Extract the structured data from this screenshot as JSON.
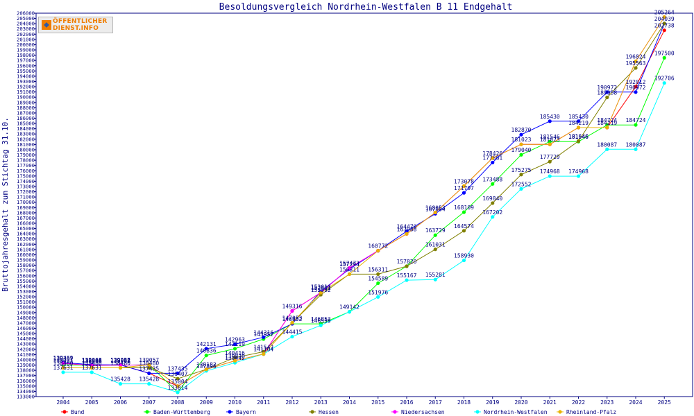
{
  "logo": {
    "line1": "ÖFFENTLICHER",
    "line2": "DIENST.INFO"
  },
  "chart_data": {
    "type": "line",
    "title": "Besoldungsvergleich Nordrhein-Westfalen B 11 Endgehalt",
    "xlabel": "",
    "ylabel": "Bruttojahresgehalt zum Stichtag 31.10.",
    "ylim": [
      133000,
      206000
    ],
    "ytick_step": 1000,
    "grid": false,
    "legend_position": "bottom",
    "categories": [
      "2004",
      "2005",
      "2006",
      "2007",
      "2008",
      "2009",
      "2010",
      "2011",
      "2012",
      "2013",
      "2014",
      "2015",
      "2016",
      "2017",
      "2018",
      "2019",
      "2020",
      "2021",
      "2022",
      "2023",
      "2024",
      "2025"
    ],
    "series": [
      {
        "name": "Bund",
        "color": "#ff0000",
        "values": [
          139331,
          138888,
          139057,
          137435,
          135004,
          138182,
          139830,
          141104,
          149316,
          152801,
          157473,
          160772,
          163988,
          168053,
          173078,
          178426,
          181023,
          181023,
          184219,
          184219,
          192012,
          202738
        ]
      },
      {
        "name": "Baden-Württemberg",
        "color": "#00ff00",
        "values": [
          139031,
          138968,
          138968,
          139057,
          133814,
          140836,
          142119,
          143952,
          146852,
          146852,
          149142,
          154589,
          157820,
          163729,
          168109,
          173488,
          179040,
          181546,
          181546,
          184724,
          184724,
          197500
        ]
      },
      {
        "name": "Bayern",
        "color": "#0000ff",
        "values": [
          139469,
          139068,
          139031,
          137435,
          137435,
          142131,
          142963,
          144316,
          146852,
          153010,
          157294,
          160772,
          164470,
          167804,
          171797,
          177561,
          182870,
          185430,
          185430,
          190972,
          190972,
          204039
        ]
      },
      {
        "name": "Hessen",
        "color": "#808000",
        "values": [
          138480,
          138480,
          138480,
          138480,
          136407,
          138182,
          140416,
          141542,
          147053,
          152392,
          156311,
          156311,
          157820,
          161031,
          164574,
          169840,
          175275,
          177729,
          181646,
          189958,
          195563,
          204039
        ]
      },
      {
        "name": "Niedersachsen",
        "color": "#ff00ff",
        "values": [
          139331,
          138968,
          138968,
          139057,
          135004,
          138182,
          139830,
          141104,
          149316,
          152801,
          157473,
          160772,
          163988,
          168053,
          173078,
          178426,
          181023,
          181023,
          184219,
          184219,
          196824,
          205264
        ]
      },
      {
        "name": "Nordrhein-Westfalen",
        "color": "#00ffff",
        "values": [
          137631,
          137631,
          135428,
          135428,
          133814,
          137896,
          139442,
          141104,
          144415,
          146559,
          149142,
          151976,
          155167,
          155281,
          158930,
          167202,
          172552,
          174968,
          174968,
          180087,
          180087,
          192706
        ]
      },
      {
        "name": "Rheinland-Pfalz",
        "color": "#e8b400",
        "values": [
          138480,
          138480,
          138480,
          139057,
          135004,
          138182,
          139830,
          141104,
          147053,
          152801,
          156311,
          160772,
          163988,
          168053,
          173078,
          178426,
          181023,
          181023,
          184219,
          184219,
          196824,
          205264
        ]
      }
    ]
  }
}
